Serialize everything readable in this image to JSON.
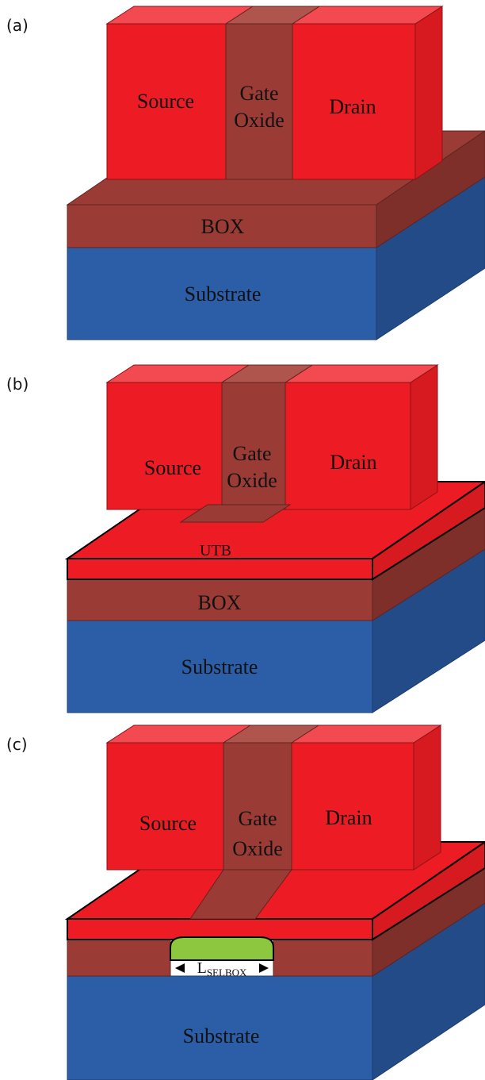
{
  "panels": [
    {
      "label": "(a)",
      "source": "Source",
      "gate_line1": "Gate",
      "gate_line2": "Oxide",
      "drain": "Drain",
      "box": "BOX",
      "substrate": "Substrate"
    },
    {
      "label": "(b)",
      "source": "Source",
      "gate_line1": "Gate",
      "gate_line2": "Oxide",
      "drain": "Drain",
      "utb": "UTB",
      "box": "BOX",
      "substrate": "Substrate"
    },
    {
      "label": "(c)",
      "source": "Source",
      "gate_line1": "Gate",
      "gate_line2": "Oxide",
      "drain": "Drain",
      "lselbox_main": "L",
      "lselbox_sub": "SELBOX",
      "substrate": "Substrate"
    }
  ],
  "colors": {
    "red": "#ed1c24",
    "red_side": "#d61a20",
    "red_top": "#f24a50",
    "oxide": "#9a3c35",
    "oxide_side": "#7f2f29",
    "oxide_top": "#b0554d",
    "blue": "#2c5ea8",
    "blue_side": "#224b88",
    "green": "#8dc63f"
  }
}
